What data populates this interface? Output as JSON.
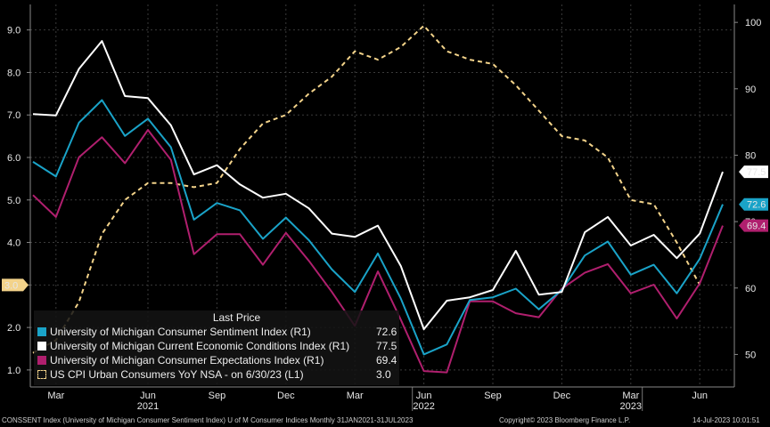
{
  "chart_data": {
    "type": "line",
    "x_labels": [
      {
        "i": 1,
        "label": "Mar"
      },
      {
        "i": 5,
        "label": "Jun"
      },
      {
        "i": 8,
        "label": "Sep"
      },
      {
        "i": 11,
        "label": "Dec"
      },
      {
        "i": 14,
        "label": "Mar"
      },
      {
        "i": 17,
        "label": "Jun"
      },
      {
        "i": 20,
        "label": "Sep"
      },
      {
        "i": 23,
        "label": "Dec"
      },
      {
        "i": 26,
        "label": "Mar"
      },
      {
        "i": 29,
        "label": "Jun"
      }
    ],
    "year_labels": [
      {
        "i": 5,
        "label": "2021"
      },
      {
        "i": 17,
        "label": "2022"
      },
      {
        "i": 26,
        "label": "2023"
      }
    ],
    "left_axis": {
      "ticks": [
        "1.0",
        "2.0",
        "3.0",
        "4.0",
        "5.0",
        "6.0",
        "7.0",
        "8.0",
        "9.0"
      ],
      "ylim": [
        0.6,
        9.6
      ]
    },
    "right_axis": {
      "ticks": [
        "50",
        "60",
        "70",
        "80",
        "90",
        "100"
      ],
      "ylim": [
        45.1,
        102.7
      ]
    },
    "series": [
      {
        "name": "University of Michigan Consumer Sentiment Index  (R1)",
        "axis": "right",
        "color": "#1aa3c8",
        "style": "solid",
        "last": "72.6",
        "values": [
          79.0,
          76.8,
          84.9,
          88.3,
          82.9,
          85.5,
          81.2,
          70.3,
          72.8,
          71.7,
          67.4,
          70.6,
          67.2,
          62.8,
          59.4,
          65.2,
          58.4,
          50.0,
          51.5,
          58.2,
          58.6,
          59.9,
          56.8,
          59.7,
          64.9,
          67.0,
          62.0,
          63.5,
          59.2,
          64.4,
          72.6
        ]
      },
      {
        "name": "University of Michigan Current Economic Conditions Index  (R1)",
        "axis": "right",
        "color": "#ffffff",
        "style": "solid",
        "last": "77.5",
        "values": [
          86.2,
          86.0,
          93.0,
          97.2,
          88.9,
          88.6,
          84.5,
          77.1,
          78.5,
          75.6,
          73.6,
          74.2,
          72.0,
          68.2,
          67.7,
          69.4,
          63.3,
          53.8,
          58.1,
          58.6,
          59.7,
          65.6,
          59.0,
          59.4,
          68.4,
          70.7,
          66.4,
          68.0,
          64.5,
          68.2,
          77.5
        ]
      },
      {
        "name": "University of Michigan Consumer Expectations Index  (R1)",
        "axis": "right",
        "color": "#b01f6e",
        "style": "solid",
        "last": "69.4",
        "values": [
          74.0,
          70.7,
          79.7,
          82.7,
          78.8,
          83.8,
          79.3,
          65.1,
          68.1,
          68.1,
          63.5,
          68.3,
          64.1,
          59.4,
          54.3,
          62.5,
          55.2,
          47.5,
          47.3,
          58.0,
          58.0,
          56.2,
          55.6,
          59.9,
          62.3,
          63.6,
          59.2,
          60.5,
          55.4,
          60.7,
          69.4
        ]
      },
      {
        "name": "US CPI Urban Consumers YoY NSA -  on 6/30/23  (L1)",
        "axis": "left",
        "color": "#f3d38a",
        "style": "dashed",
        "last": "3.0",
        "values": [
          1.4,
          1.7,
          2.6,
          4.2,
          5.0,
          5.4,
          5.4,
          5.3,
          5.4,
          6.2,
          6.8,
          7.0,
          7.5,
          7.9,
          8.5,
          8.3,
          8.6,
          9.1,
          8.5,
          8.3,
          8.2,
          7.7,
          7.1,
          6.5,
          6.4,
          6.0,
          5.0,
          4.9,
          4.0,
          3.0
        ]
      }
    ]
  },
  "legend": {
    "header": "Last Price"
  },
  "footer": {
    "left": "CONSSENT Index (University of Michigan Consumer Sentiment Index) U of M Consumer Indices  Monthly 31JAN2021-31JUL2023",
    "center": "Copyright© 2023 Bloomberg Finance L.P.",
    "right": "14-Jul-2023 10:01:51"
  }
}
